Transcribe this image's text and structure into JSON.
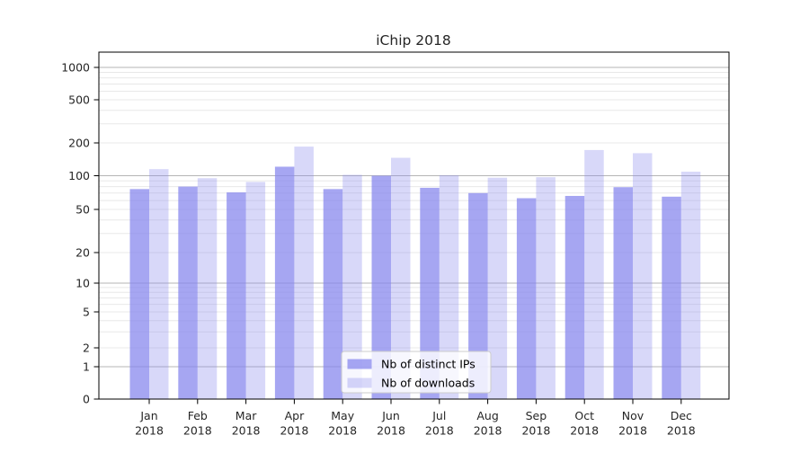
{
  "chart_data": {
    "type": "bar",
    "title": "iChip 2018",
    "categories": [
      "Jan 2018",
      "Feb 2018",
      "Mar 2018",
      "Apr 2018",
      "May 2018",
      "Jun 2018",
      "Jul 2018",
      "Aug 2018",
      "Sep 2018",
      "Oct 2018",
      "Nov 2018",
      "Dec 2018"
    ],
    "series": [
      {
        "name": "Nb of distinct IPs",
        "base_color": "#8888ee",
        "fill_opacity": 0.75,
        "values": [
          76,
          80,
          71,
          121,
          76,
          100,
          78,
          70,
          63,
          66,
          79,
          65
        ]
      },
      {
        "name": "Nb of downloads",
        "base_color": "#8888ee",
        "fill_opacity": 0.33,
        "values": [
          115,
          95,
          88,
          185,
          102,
          146,
          101,
          96,
          97,
          172,
          161,
          109
        ]
      }
    ],
    "yscale": "symlog",
    "ylim": [
      0,
      1800
    ],
    "yticks": [
      0,
      1,
      2,
      5,
      10,
      20,
      50,
      100,
      200,
      500,
      1000
    ],
    "grid": true,
    "grid_major_color": "#b5b5b5",
    "grid_minor_color": "#e8e8e8",
    "axis_color": "#000000",
    "text_color": "#262626",
    "legend_position": "lower center",
    "legend_bg": "#ffffff",
    "legend_border": "#cccccc"
  }
}
